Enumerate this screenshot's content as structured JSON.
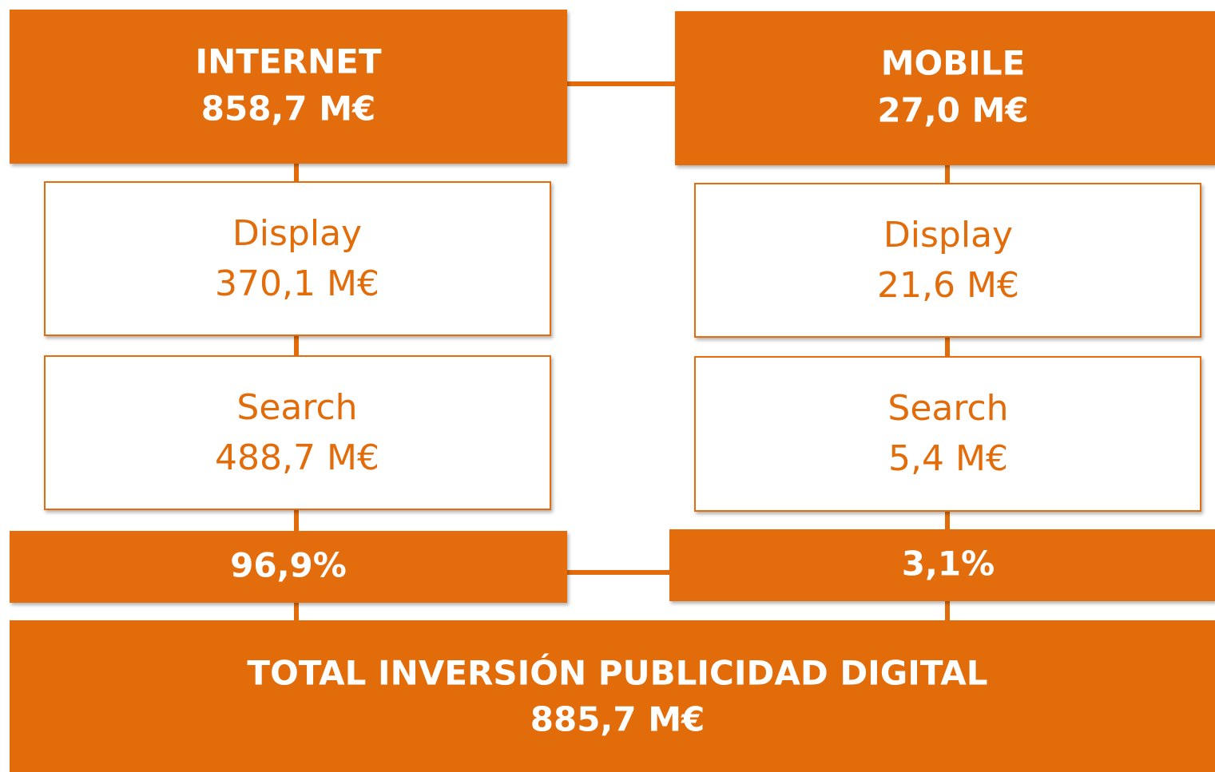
{
  "columns": [
    {
      "title": "INTERNET",
      "value": "858,7 M€",
      "items": [
        {
          "label": "Display",
          "value": "370,1 M€"
        },
        {
          "label": "Search",
          "value": "488,7 M€"
        }
      ],
      "share": "96,9%"
    },
    {
      "title": "MOBILE",
      "value": "27,0 M€",
      "items": [
        {
          "label": "Display",
          "value": "21,6 M€"
        },
        {
          "label": "Search",
          "value": "5,4 M€"
        }
      ],
      "share": "3,1%"
    }
  ],
  "total": {
    "title": "TOTAL INVERSIÓN PUBLICIDAD DIGITAL",
    "value": "885,7 M€"
  }
}
